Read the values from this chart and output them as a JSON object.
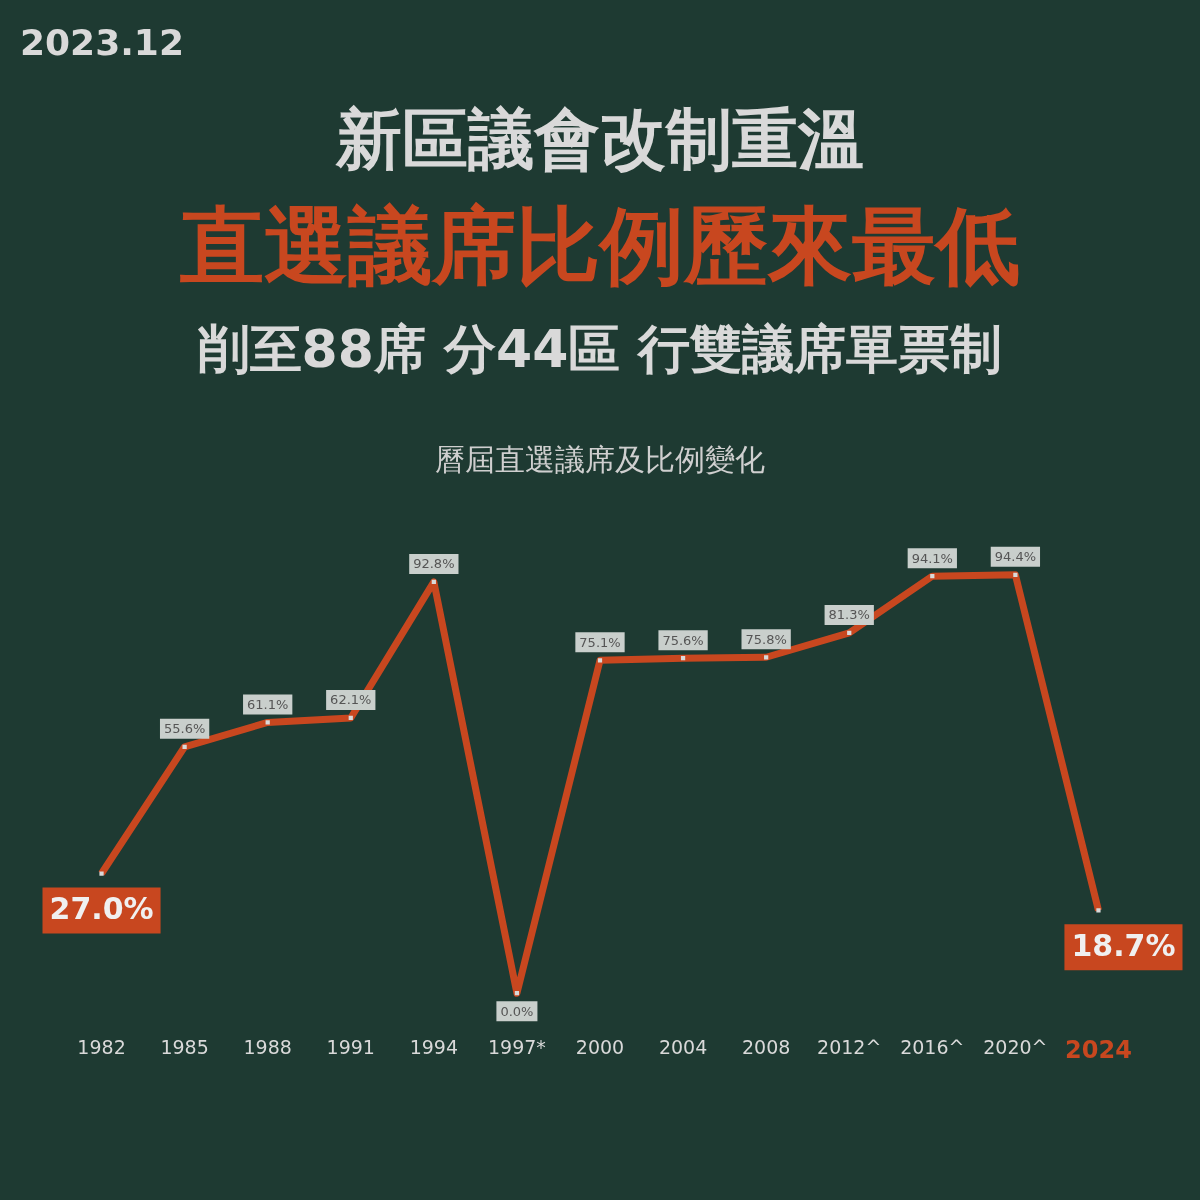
{
  "chart_data": {
    "type": "line",
    "title": "新區議會改制重溫",
    "subtitle": "直選議席比例歷來最低",
    "annotations": [
      "2023.12",
      "削至88席 分44區 行雙議席單票制",
      "曆屆直選議席及比例變化"
    ],
    "categories": [
      "1982",
      "1985",
      "1988",
      "1991",
      "1994",
      "1997*",
      "2000",
      "2004",
      "2008",
      "2012^",
      "2016^",
      "2020^",
      "2024"
    ],
    "values": [
      27.0,
      55.6,
      61.1,
      62.1,
      92.8,
      0.0,
      75.1,
      75.6,
      75.8,
      81.3,
      94.1,
      94.4,
      18.7
    ],
    "value_labels": [
      "27.0%",
      "55.6%",
      "61.1%",
      "62.1%",
      "92.8%",
      "0.0%",
      "75.1%",
      "75.6%",
      "75.8%",
      "81.3%",
      "94.1%",
      "94.4%",
      "18.7%"
    ],
    "color": "#c8471f",
    "marker": "square",
    "grid": false,
    "legend": false,
    "tick_labels": "x"
  }
}
